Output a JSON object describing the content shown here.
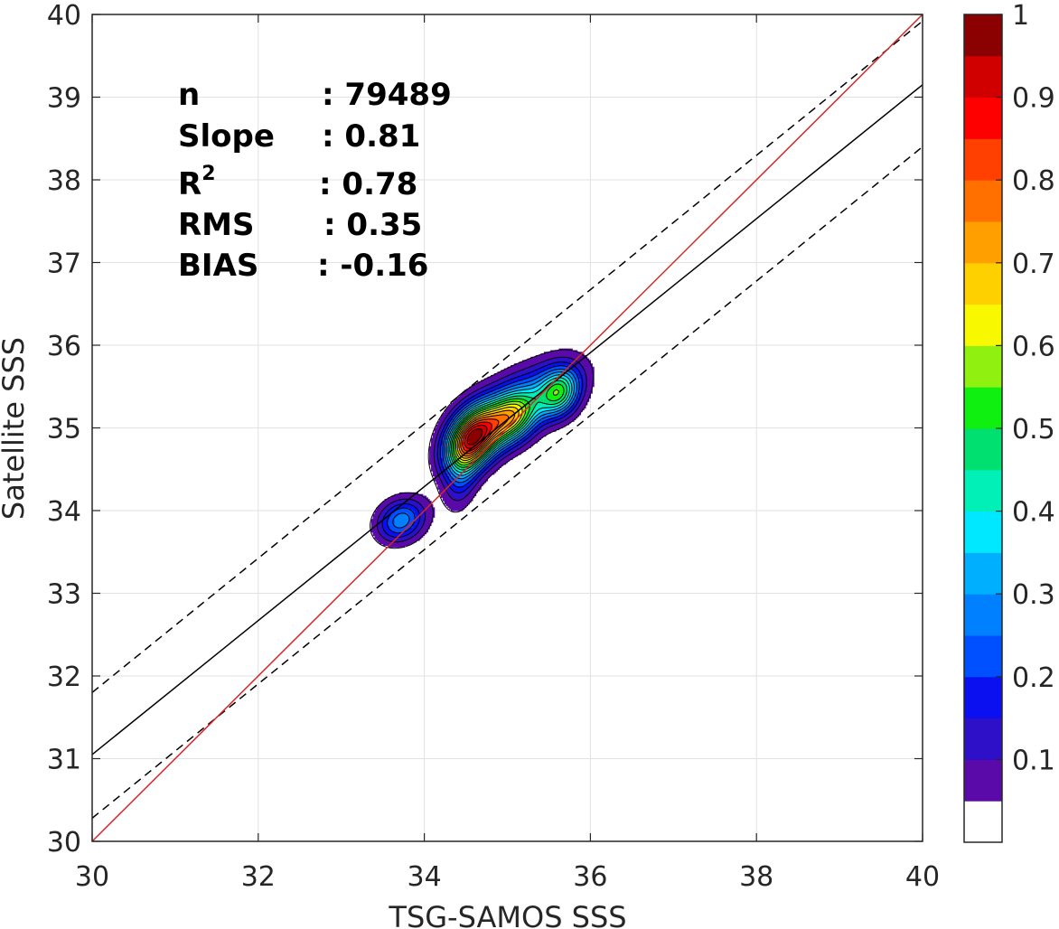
{
  "chart_data": {
    "type": "heatmap",
    "title": "",
    "xlabel": "TSG-SAMOS SSS",
    "ylabel": "Satellite SSS",
    "xlim": [
      30,
      40
    ],
    "ylim": [
      30,
      40
    ],
    "x_ticks": [
      "30",
      "32",
      "34",
      "36",
      "38",
      "40"
    ],
    "y_ticks": [
      "30",
      "31",
      "32",
      "33",
      "34",
      "35",
      "36",
      "37",
      "38",
      "39",
      "40"
    ],
    "grid": true,
    "stats": [
      {
        "label": "n",
        "value": ": 79489"
      },
      {
        "label": "Slope",
        "value": ": 0.81"
      },
      {
        "label": "R",
        "sup": "2",
        "value": ": 0.78"
      },
      {
        "label": "RMS",
        "value": ": 0.35"
      },
      {
        "label": "BIAS",
        "value": ": -0.16"
      }
    ],
    "lines": {
      "identity": {
        "from": [
          30,
          30
        ],
        "to": [
          40,
          40
        ],
        "color": "#d62728"
      },
      "regression": {
        "from": [
          30,
          31.05
        ],
        "to": [
          40,
          39.15
        ],
        "color": "#000000"
      },
      "upper_bound": {
        "from": [
          30,
          31.8
        ],
        "to": [
          40,
          39.92
        ],
        "color": "#000000"
      },
      "lower_bound": {
        "from": [
          30,
          30.28
        ],
        "to": [
          40,
          38.4
        ],
        "color": "#000000"
      }
    },
    "density_peaks": [
      {
        "x": 34.58,
        "y": 34.88,
        "amp": 1.0,
        "sx": 0.22,
        "sy": 0.26,
        "rho": 0.35
      },
      {
        "x": 35.05,
        "y": 35.12,
        "amp": 0.62,
        "sx": 0.22,
        "sy": 0.22,
        "rho": 0.3
      },
      {
        "x": 35.62,
        "y": 35.42,
        "amp": 0.48,
        "sx": 0.17,
        "sy": 0.2,
        "rho": 0.2
      },
      {
        "x": 33.72,
        "y": 33.88,
        "amp": 0.32,
        "sx": 0.2,
        "sy": 0.18,
        "rho": 0.2
      },
      {
        "x": 35.3,
        "y": 35.45,
        "amp": 0.2,
        "sx": 0.4,
        "sy": 0.28,
        "rho": 0.5
      },
      {
        "x": 34.45,
        "y": 34.45,
        "amp": 0.18,
        "sx": 0.14,
        "sy": 0.3,
        "rho": 0.3
      }
    ],
    "colorbar": {
      "tick_labels": [
        "0.1",
        "0.2",
        "0.3",
        "0.4",
        "0.5",
        "0.6",
        "0.7",
        "0.8",
        "0.9",
        "1"
      ],
      "levels": [
        0.05,
        0.1,
        0.15,
        0.2,
        0.25,
        0.3,
        0.35,
        0.4,
        0.45,
        0.5,
        0.55,
        0.6,
        0.65,
        0.7,
        0.75,
        0.8,
        0.85,
        0.9,
        0.95
      ],
      "colors": [
        "#ffffff",
        "#5a0aa8",
        "#2d10c8",
        "#0a10f0",
        "#0050ff",
        "#0080ff",
        "#00b0ff",
        "#00e8ff",
        "#00f0b8",
        "#00e070",
        "#10f010",
        "#90f010",
        "#f8f800",
        "#ffd000",
        "#ffa000",
        "#ff7000",
        "#ff4000",
        "#ff0000",
        "#d00000",
        "#8b0000"
      ]
    }
  }
}
